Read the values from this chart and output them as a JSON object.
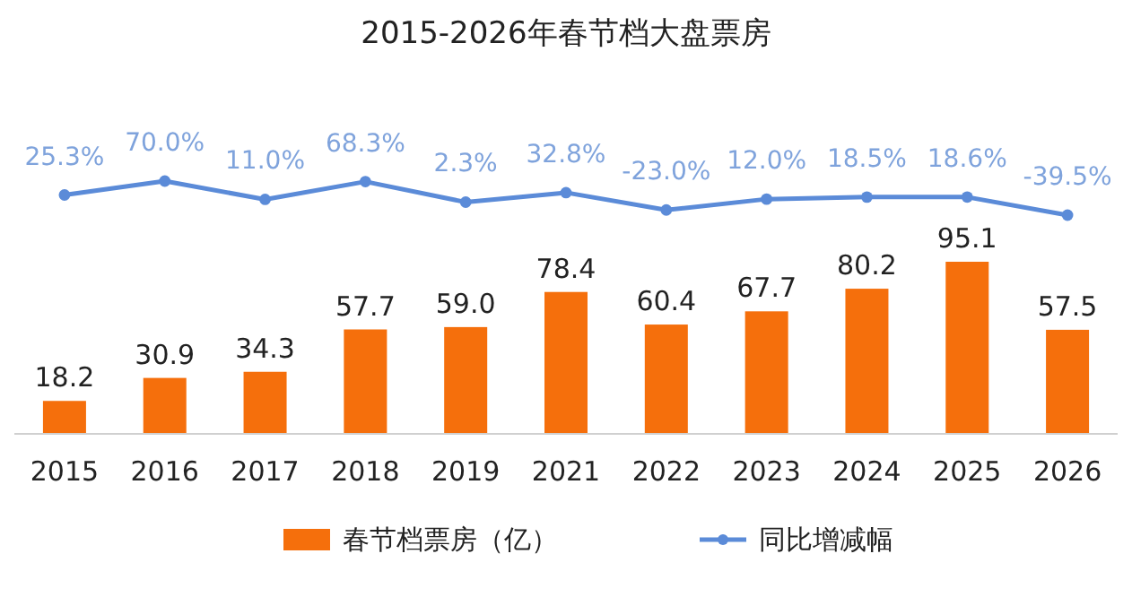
{
  "chart_data": [
    {
      "type": "line",
      "title": "2015-2026年春节档大盘票房",
      "categories": [
        null,
        null,
        null,
        null,
        null,
        null,
        null,
        null,
        null,
        null,
        null
      ],
      "series": [
        {
          "name": "同比增减幅",
          "color": "#5b8bd8",
          "values": [
            25.3,
            70.0,
            11.0,
            68.3,
            2.3,
            32.8,
            -23.0,
            12.0,
            18.5,
            18.6,
            -39.5
          ],
          "value_labels": [
            "25.3%",
            "70.0%",
            "11.0%",
            "68.3%",
            "2.3%",
            "32.8%",
            "-23.0%",
            "12.0%",
            "18.5%",
            "18.6%",
            "-39.5%"
          ]
        }
      ],
      "marker": "circle",
      "legend": "bottom"
    },
    {
      "type": "bar",
      "categories": [
        "2015",
        "2016",
        "2017",
        "2018",
        "2019",
        "2021",
        "2022",
        "2023",
        "2024",
        "2025",
        "2026"
      ],
      "series": [
        {
          "name": "春节档票房（亿）",
          "color": "#f56f0c",
          "values": [
            18.2,
            30.9,
            34.3,
            57.7,
            59.0,
            78.4,
            60.4,
            67.7,
            80.2,
            95.1,
            57.5
          ],
          "value_labels": [
            "18.2",
            "30.9",
            "34.3",
            "57.7",
            "59.0",
            "78.4",
            "60.4",
            "67.7",
            "80.2",
            "95.1",
            "57.5"
          ]
        }
      ],
      "ylim": [
        0,
        95.1
      ],
      "legend": "bottom"
    }
  ]
}
